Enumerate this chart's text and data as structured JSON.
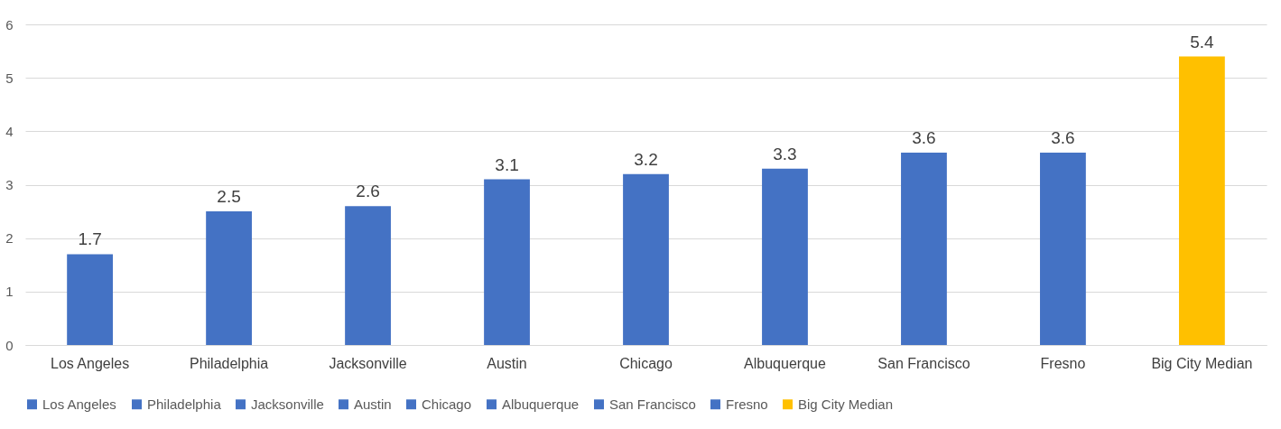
{
  "chart_data": {
    "type": "bar",
    "categories": [
      "Los Angeles",
      "Philadelphia",
      "Jacksonville",
      "Austin",
      "Chicago",
      "Albuquerque",
      "San Francisco",
      "Fresno",
      "Big City Median"
    ],
    "series": [
      {
        "name": "Los Angeles",
        "color": "#4472c4",
        "values": [
          1.7,
          null,
          null,
          null,
          null,
          null,
          null,
          null,
          null
        ]
      },
      {
        "name": "Philadelphia",
        "color": "#4472c4",
        "values": [
          null,
          2.5,
          null,
          null,
          null,
          null,
          null,
          null,
          null
        ]
      },
      {
        "name": "Jacksonville",
        "color": "#4472c4",
        "values": [
          null,
          null,
          2.6,
          null,
          null,
          null,
          null,
          null,
          null
        ]
      },
      {
        "name": "Austin",
        "color": "#4472c4",
        "values": [
          null,
          null,
          null,
          3.1,
          null,
          null,
          null,
          null,
          null
        ]
      },
      {
        "name": "Chicago",
        "color": "#4472c4",
        "values": [
          null,
          null,
          null,
          null,
          3.2,
          null,
          null,
          null,
          null
        ]
      },
      {
        "name": "Albuquerque",
        "color": "#4472c4",
        "values": [
          null,
          null,
          null,
          null,
          null,
          3.3,
          null,
          null,
          null
        ]
      },
      {
        "name": "San Francisco",
        "color": "#4472c4",
        "values": [
          null,
          null,
          null,
          null,
          null,
          null,
          3.6,
          null,
          null
        ]
      },
      {
        "name": "Fresno",
        "color": "#4472c4",
        "values": [
          null,
          null,
          null,
          null,
          null,
          null,
          null,
          3.6,
          null
        ]
      },
      {
        "name": "Big City Median",
        "color": "#ffc000",
        "values": [
          null,
          null,
          null,
          null,
          null,
          null,
          null,
          null,
          5.4
        ]
      }
    ],
    "ylim": [
      0,
      6
    ],
    "yticks": [
      0,
      1,
      2,
      3,
      4,
      5,
      6
    ],
    "grid": "y",
    "legend": "bottom",
    "data_labels": true
  }
}
